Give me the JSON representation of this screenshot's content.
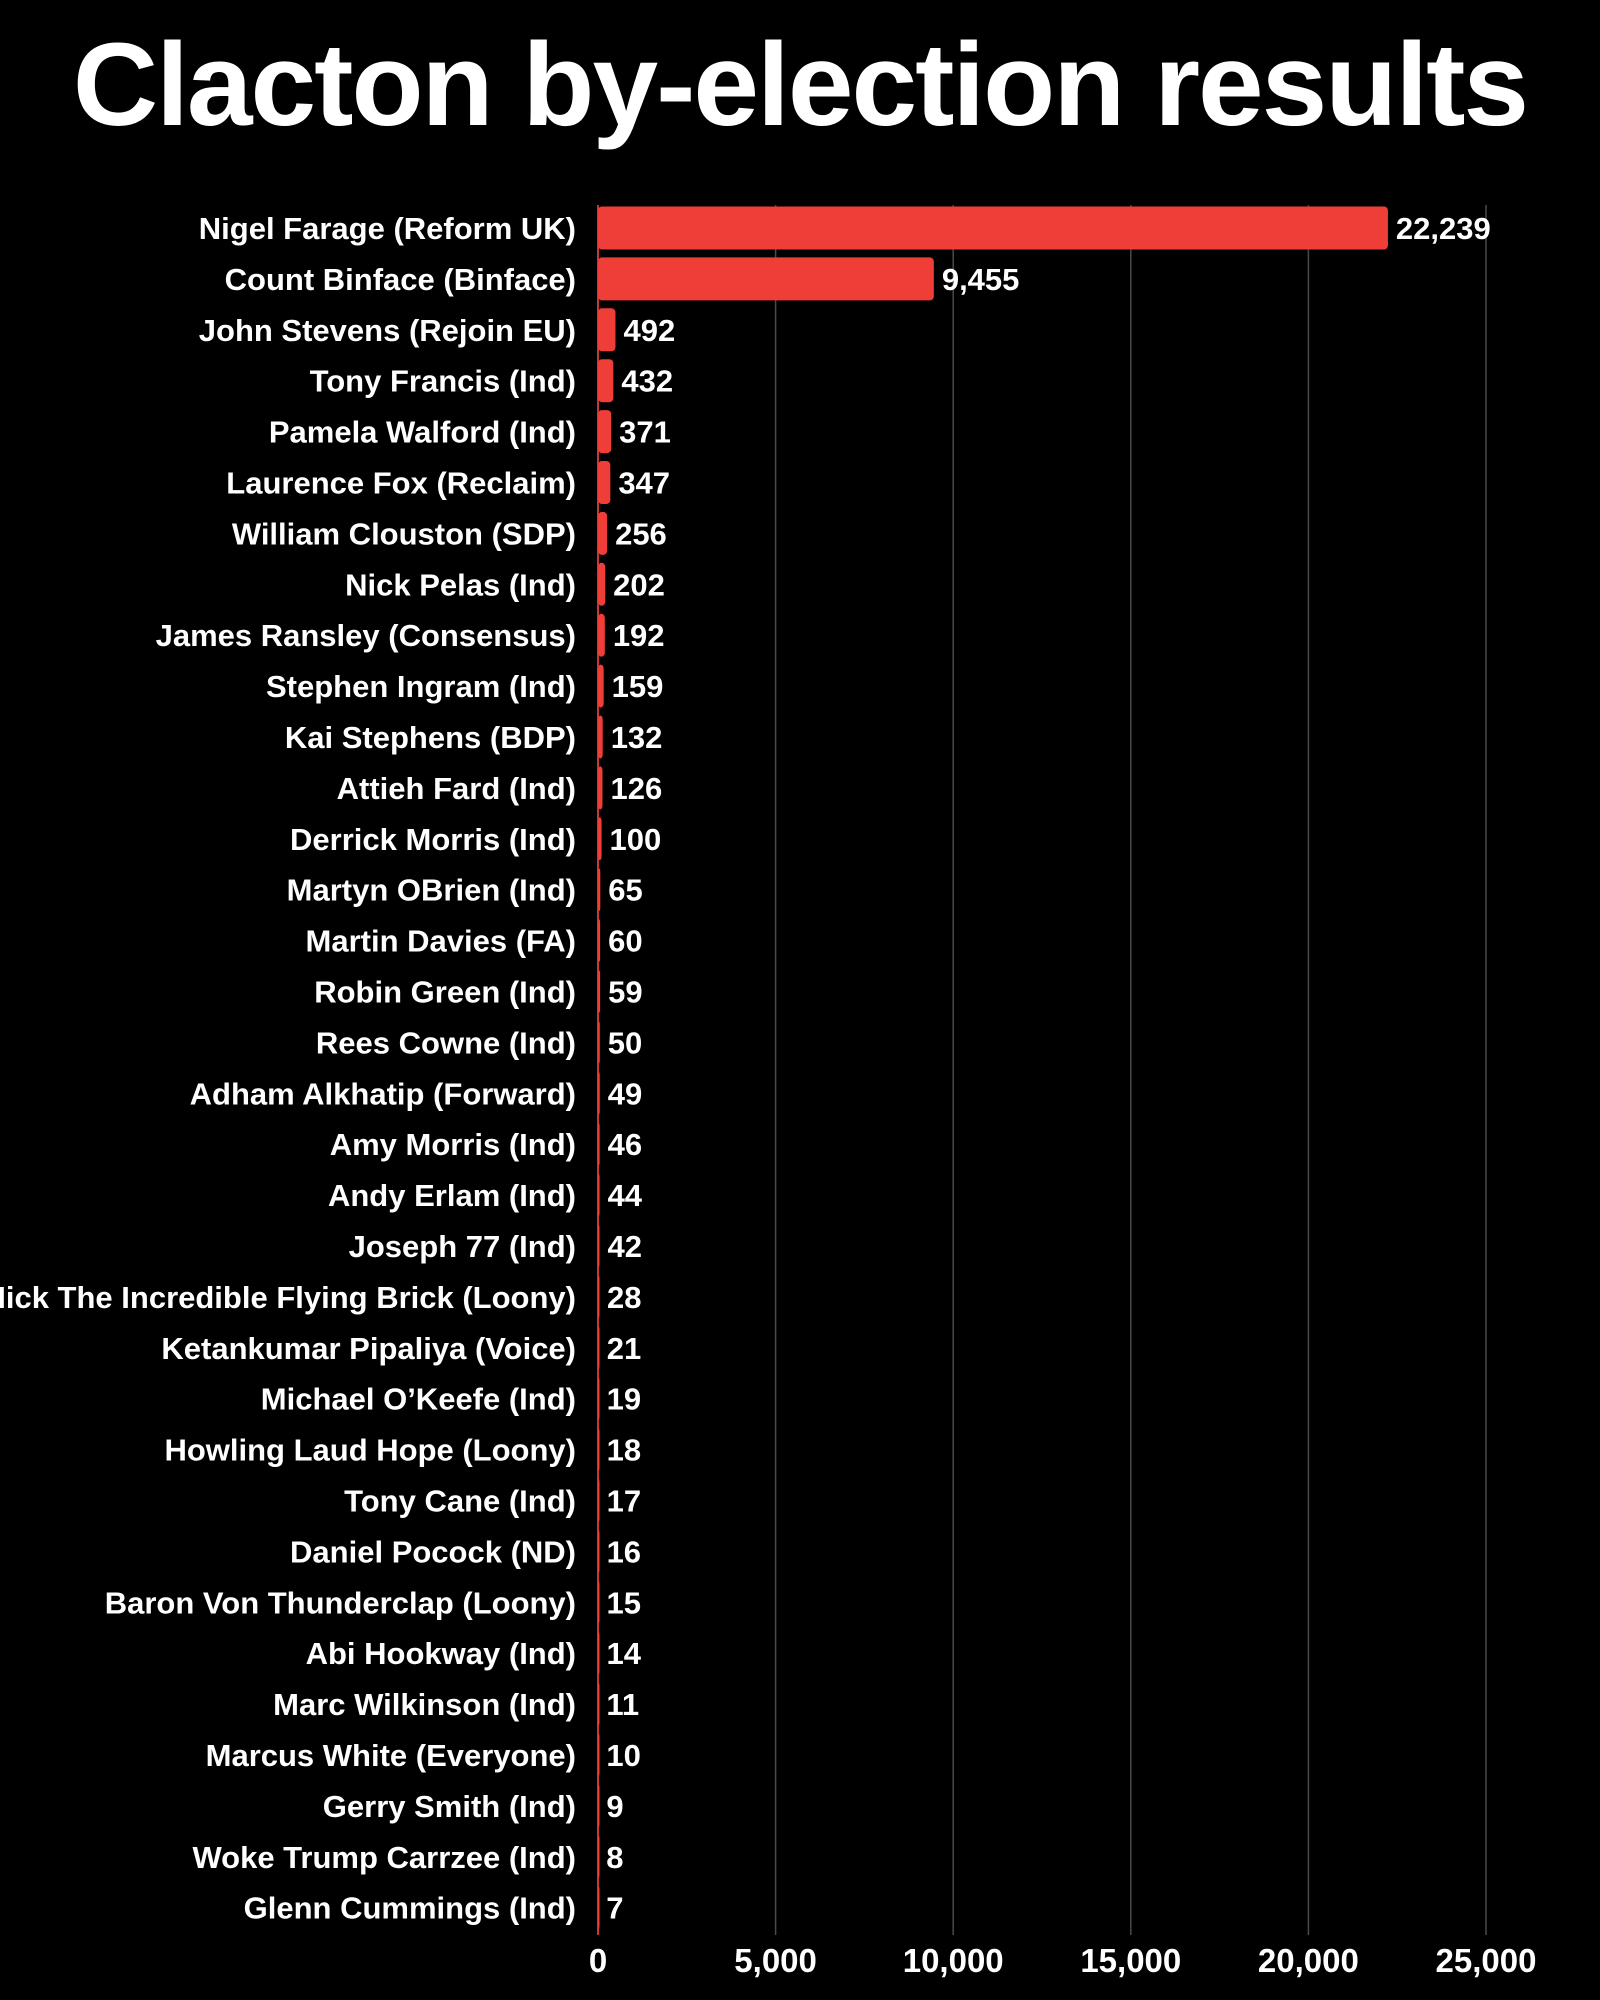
{
  "chart_data": {
    "type": "bar",
    "orientation": "horizontal",
    "title": "Clacton by-election results",
    "xlabel": "",
    "ylabel": "",
    "xlim": [
      0,
      25000
    ],
    "x_ticks": [
      0,
      5000,
      10000,
      15000,
      20000,
      25000
    ],
    "x_tick_labels": [
      "0",
      "5,000",
      "10,000",
      "15,000",
      "20,000",
      "25,000"
    ],
    "grid": "vertical",
    "bar_color": "#ef3e37",
    "background_color": "#000000",
    "text_color": "#ffffff",
    "categories": [
      "Nigel Farage (Reform UK)",
      "Count Binface (Binface)",
      "John Stevens (Rejoin EU)",
      "Tony Francis (Ind)",
      "Pamela Walford (Ind)",
      "Laurence Fox (Reclaim)",
      "William Clouston (SDP)",
      "Nick Pelas (Ind)",
      "James Ransley (Consensus)",
      "Stephen Ingram (Ind)",
      "Kai Stephens (BDP)",
      "Attieh Fard (Ind)",
      "Derrick Morris (Ind)",
      "Martyn OBrien (Ind)",
      "Martin Davies (FA)",
      "Robin Green (Ind)",
      "Rees Cowne (Ind)",
      "Adham Alkhatip (Forward)",
      "Amy Morris (Ind)",
      "Andy Erlam (Ind)",
      "Joseph 77 (Ind)",
      "Nick The Incredible Flying Brick (Loony)",
      "Ketankumar Pipaliya (Voice)",
      "Michael O’Keefe (Ind)",
      "Howling Laud Hope (Loony)",
      "Tony Cane (Ind)",
      "Daniel Pocock (ND)",
      "Baron Von Thunderclap (Loony)",
      "Abi Hookway (Ind)",
      "Marc Wilkinson (Ind)",
      "Marcus White (Everyone)",
      "Gerry Smith (Ind)",
      "Woke Trump Carrzee (Ind)",
      "Glenn Cummings (Ind)"
    ],
    "values": [
      22239,
      9455,
      492,
      432,
      371,
      347,
      256,
      202,
      192,
      159,
      132,
      126,
      100,
      65,
      60,
      59,
      50,
      49,
      46,
      44,
      42,
      28,
      21,
      19,
      18,
      17,
      16,
      15,
      14,
      11,
      10,
      9,
      8,
      7
    ],
    "value_labels": [
      "22,239",
      "9,455",
      "492",
      "432",
      "371",
      "347",
      "256",
      "202",
      "192",
      "159",
      "132",
      "126",
      "100",
      "65",
      "60",
      "59",
      "50",
      "49",
      "46",
      "44",
      "42",
      "28",
      "21",
      "19",
      "18",
      "17",
      "16",
      "15",
      "14",
      "11",
      "10",
      "9",
      "8",
      "7"
    ]
  }
}
